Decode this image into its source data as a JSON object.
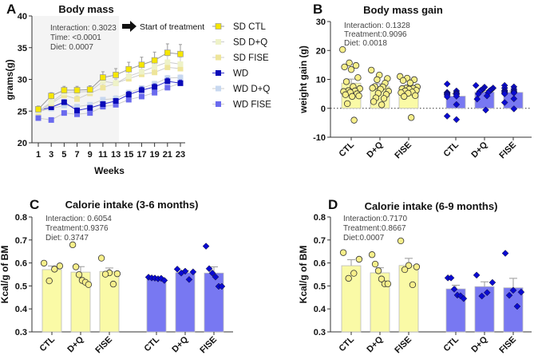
{
  "chart_data": [
    {
      "id": "A",
      "type": "line",
      "panel_label": "A",
      "title": "Body mass",
      "xlabel": "Weeks",
      "ylabel": "grams(g)",
      "ylim": [
        20,
        40
      ],
      "yticks": [
        20,
        25,
        30,
        35,
        40
      ],
      "x": [
        1,
        3,
        5,
        7,
        9,
        11,
        13,
        15,
        17,
        19,
        21,
        23
      ],
      "xticks": [
        "1",
        "3",
        "5",
        "7",
        "9",
        "11",
        "13",
        "15",
        "17",
        "19",
        "21",
        "23"
      ],
      "shaded_region": {
        "from_week": 0,
        "to_week": 13.5
      },
      "annotation": "Start of treatment",
      "stats": [
        "Interaction: 0.3023",
        "Time: <0.0001",
        "Diet: 0.0007"
      ],
      "legend_position": "right",
      "series": [
        {
          "name": "SD CTL",
          "color": "#f5e600",
          "line": "#999999",
          "values": [
            25.3,
            27.4,
            28.3,
            28.3,
            28.4,
            30.3,
            30.7,
            31.6,
            32.3,
            33.0,
            34.2,
            34.0
          ],
          "err": [
            0.5,
            0.5,
            0.6,
            0.6,
            0.6,
            0.9,
            1.0,
            1.1,
            1.2,
            1.3,
            1.4,
            1.5
          ]
        },
        {
          "name": "SD D+Q",
          "color": "#eef2c8",
          "line": "#cccccc",
          "values": [
            25.0,
            26.4,
            27.9,
            28.0,
            28.1,
            29.7,
            29.4,
            30.5,
            31.2,
            32.0,
            32.7,
            32.4
          ],
          "err": [
            0.4,
            0.5,
            0.5,
            0.5,
            0.5,
            0.7,
            0.7,
            0.8,
            0.9,
            1.0,
            1.0,
            1.1
          ]
        },
        {
          "name": "SD FISE",
          "color": "#eee59a",
          "line": "#cccccc",
          "values": [
            24.8,
            26.2,
            27.5,
            26.9,
            27.8,
            28.7,
            29.4,
            30.1,
            30.8,
            31.1,
            31.9,
            31.7
          ],
          "err": [
            0.4,
            0.4,
            0.5,
            0.5,
            0.5,
            0.6,
            0.6,
            0.7,
            0.8,
            0.8,
            0.9,
            0.9
          ]
        },
        {
          "name": "WD",
          "color": "#0a0ab8",
          "line": "#3333cc",
          "values": [
            25.1,
            25.6,
            26.4,
            25.1,
            25.5,
            26.1,
            26.6,
            27.6,
            28.3,
            28.8,
            29.7,
            29.4
          ],
          "err": [
            0.3,
            0.3,
            0.4,
            0.4,
            0.4,
            0.4,
            0.4,
            0.5,
            0.5,
            0.5,
            0.5,
            0.5
          ]
        },
        {
          "name": "WD D+Q",
          "color": "#c8d8f0",
          "line": "#cccccc",
          "values": [
            24.9,
            25.4,
            25.9,
            25.7,
            26.0,
            26.8,
            27.0,
            27.9,
            28.6,
            29.3,
            30.2,
            30.3
          ],
          "err": [
            0.3,
            0.3,
            0.3,
            0.3,
            0.3,
            0.3,
            0.4,
            0.4,
            0.4,
            0.4,
            0.4,
            0.4
          ]
        },
        {
          "name": "WD FISE",
          "color": "#6a6aee",
          "line": "#cccccc",
          "values": [
            23.9,
            23.6,
            24.7,
            24.5,
            24.7,
            25.7,
            26.0,
            26.8,
            27.3,
            27.9,
            28.7,
            29.4
          ],
          "err": [
            0.2,
            0.2,
            0.3,
            0.3,
            0.3,
            0.3,
            0.3,
            0.3,
            0.3,
            0.3,
            0.3,
            0.3
          ]
        }
      ]
    },
    {
      "id": "B",
      "type": "bar",
      "panel_label": "B",
      "title": "Body mass gain",
      "xlabel": "",
      "ylabel": "weight gain (g)",
      "ylim": [
        -10,
        30
      ],
      "yticks": [
        -10,
        0,
        10,
        20,
        30
      ],
      "reference_line": 0,
      "stats": [
        "Interaction: 0.1328",
        "Treatment:0.9096",
        "Diet: 0.0018"
      ],
      "categories": [
        "CTL",
        "D+Q",
        "FISE",
        "CTL",
        "D+Q",
        "FISE"
      ],
      "groups": [
        "SD",
        "SD",
        "SD",
        "WD",
        "WD",
        "WD"
      ],
      "values": [
        8.7,
        7.6,
        6.6,
        4.2,
        5.6,
        5.5
      ],
      "err": [
        1.4,
        0.9,
        0.8,
        0.8,
        0.5,
        0.5
      ],
      "points": [
        [
          20.3,
          15.7,
          14.8,
          14.3,
          13.4,
          10.6,
          9.2,
          7.5,
          6.8,
          6.1,
          6.0,
          5.8,
          5.5,
          5.0,
          4.7,
          4.1,
          4.3,
          1.6,
          -4.1
        ],
        [
          13.2,
          11.5,
          10.3,
          9.9,
          8.7,
          7.5,
          7.4,
          7.0,
          6.6,
          5.9,
          5.2,
          4.8,
          3.6,
          3.4,
          2.3,
          1.2
        ],
        [
          11.0,
          10.4,
          9.9,
          9.6,
          8.8,
          7.4,
          7.0,
          6.9,
          6.8,
          6.6,
          6.2,
          6.0,
          5.6,
          5.4,
          5.2,
          4.4,
          4.1,
          -3.2
        ],
        [
          8.4,
          6.0,
          5.5,
          5.4,
          5.2,
          5.1,
          4.9,
          4.8,
          4.6,
          4.2,
          4.0,
          1.3,
          -2.7,
          -3.9
        ],
        [
          7.9,
          7.3,
          7.0,
          6.8,
          6.6,
          6.4,
          6.3,
          6.2,
          6.0,
          5.8,
          5.4,
          5.0,
          4.3,
          3.2,
          -0.6
        ],
        [
          7.9,
          7.4,
          7.0,
          6.6,
          6.2,
          6.0,
          5.8,
          5.6,
          5.4,
          5.3,
          5.0,
          3.3,
          2.0,
          -0.2
        ]
      ],
      "colors": {
        "SD": "#fafaa6",
        "SD_point": "#f7ef8a",
        "WD": "#7878f2",
        "WD_point": "#0a0ad2"
      }
    },
    {
      "id": "C",
      "type": "bar",
      "panel_label": "C",
      "title": "Calorie intake (3-6 months)",
      "xlabel": "",
      "ylabel": "Kcal/g of BM",
      "ylim": [
        0.3,
        0.8
      ],
      "yticks": [
        "0.3",
        "0.4",
        "0.5",
        "0.6",
        "0.7",
        "0.8"
      ],
      "stats": [
        "Interaction: 0.6054",
        "Treatment:0.9376",
        "Diet: 0.3747"
      ],
      "categories": [
        "CTL",
        "D+Q",
        "FISE",
        "CTL",
        "D+Q",
        "FISE"
      ],
      "groups": [
        "SD",
        "SD",
        "SD",
        "WD",
        "WD",
        "WD"
      ],
      "values": [
        0.571,
        0.56,
        0.563,
        0.532,
        0.558,
        0.556
      ],
      "err": [
        0.016,
        0.024,
        0.015,
        0.004,
        0.009,
        0.027
      ],
      "points": [
        [
          0.599,
          0.587,
          0.573,
          0.522
        ],
        [
          0.679,
          0.583,
          0.549,
          0.524,
          0.516,
          0.506
        ],
        [
          0.621,
          0.557,
          0.553,
          0.551,
          0.508
        ],
        [
          0.538,
          0.535,
          0.534,
          0.531,
          0.533,
          0.524
        ],
        [
          0.573,
          0.564,
          0.561,
          0.556,
          0.528
        ],
        [
          0.673,
          0.575,
          0.556,
          0.539,
          0.498,
          0.498
        ]
      ],
      "colors": {
        "SD": "#fafaa6",
        "SD_point": "#f7ef8a",
        "WD": "#7878f2",
        "WD_point": "#0a0ad2"
      }
    },
    {
      "id": "D",
      "type": "bar",
      "panel_label": "D",
      "title": "Calorie intake (6-9 months)",
      "xlabel": "",
      "ylabel": "Kcal/g of BM",
      "ylim": [
        0.3,
        0.8
      ],
      "yticks": [
        "0.3",
        "0.4",
        "0.5",
        "0.6",
        "0.7",
        "0.8"
      ],
      "stats": [
        "Interaction:0.7170",
        "Treatment:0.8667",
        "Diet:0.0007"
      ],
      "categories": [
        "CTL",
        "D+Q",
        "FISE",
        "CTL",
        "D+Q",
        "FISE"
      ],
      "groups": [
        "SD",
        "SD",
        "SD",
        "WD",
        "WD",
        "WD"
      ],
      "values": [
        0.588,
        0.557,
        0.589,
        0.487,
        0.497,
        0.492
      ],
      "err": [
        0.026,
        0.022,
        0.031,
        0.016,
        0.021,
        0.041
      ],
      "points": [
        [
          0.645,
          0.616,
          0.555,
          0.533
        ],
        [
          0.636,
          0.595,
          0.566,
          0.53,
          0.509,
          0.509
        ],
        [
          0.696,
          0.589,
          0.583,
          0.571,
          0.505
        ],
        [
          0.535,
          0.535,
          0.486,
          0.46,
          0.457,
          0.445
        ],
        [
          0.547,
          0.515,
          0.471,
          0.456
        ],
        [
          0.642,
          0.481,
          0.473,
          0.459,
          0.411
        ]
      ],
      "colors": {
        "SD": "#fafaa6",
        "SD_point": "#f7ef8a",
        "WD": "#7878f2",
        "WD_point": "#0a0ad2"
      }
    }
  ]
}
